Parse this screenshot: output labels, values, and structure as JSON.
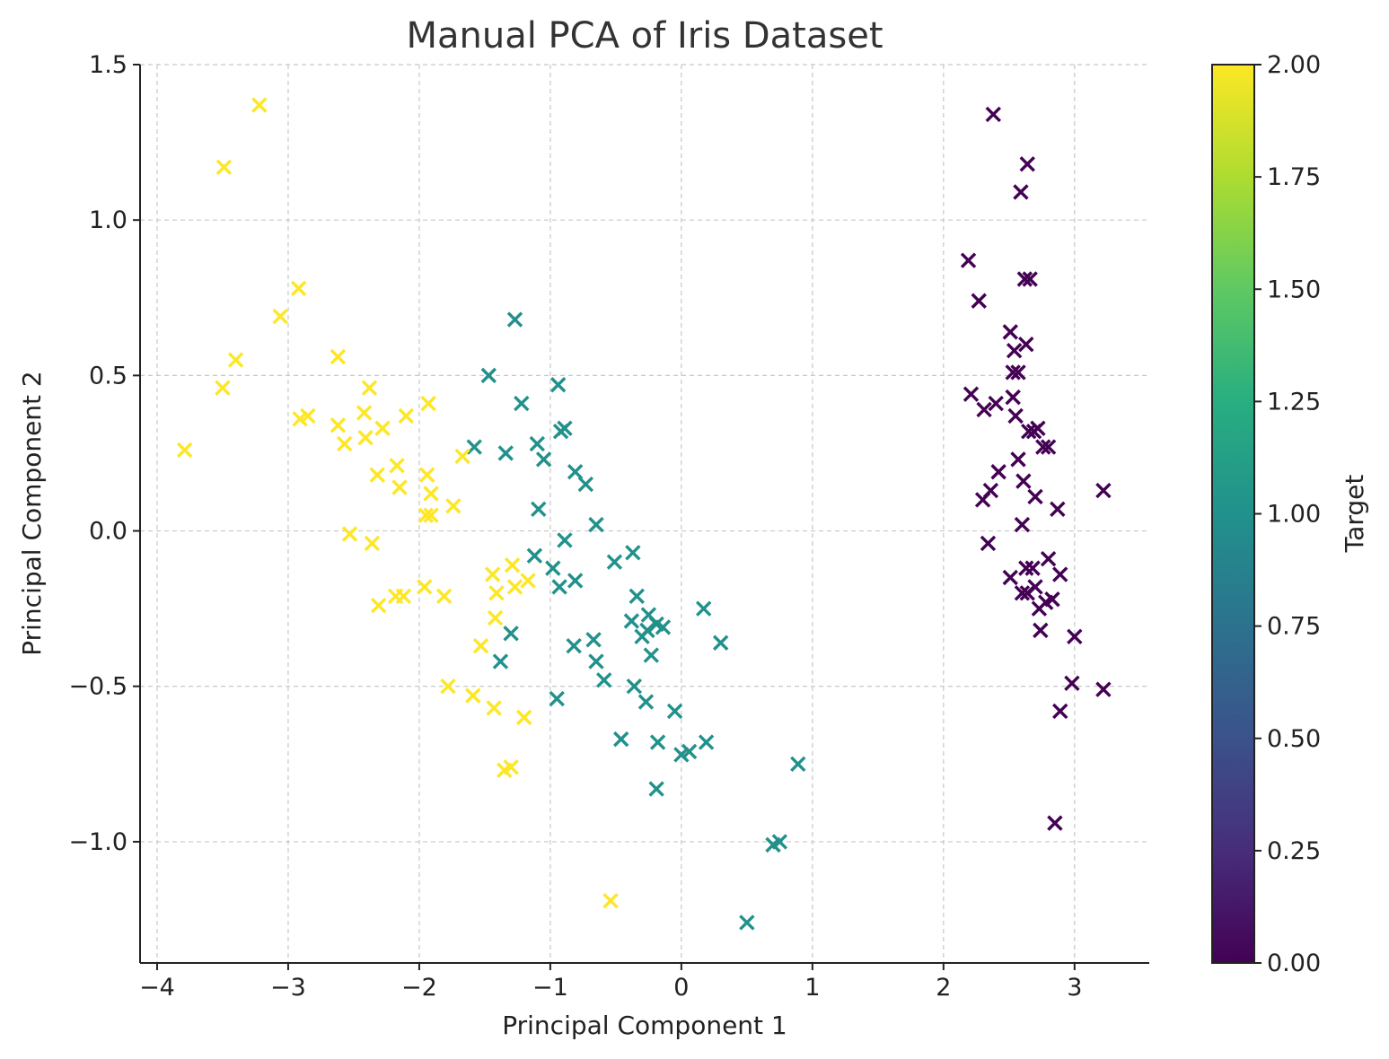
{
  "chart_data": {
    "type": "scatter",
    "title": "Manual PCA of Iris Dataset",
    "xlabel": "Principal Component 1",
    "ylabel": "Principal Component 2",
    "xlim": [
      -4.13,
      3.57
    ],
    "ylim": [
      -1.39,
      1.5
    ],
    "xticks": [
      -4,
      -3,
      -2,
      -1,
      0,
      1,
      2,
      3
    ],
    "yticks": [
      -1.0,
      -0.5,
      0.0,
      0.5,
      1.0,
      1.5
    ],
    "xtick_labels": [
      "−4",
      "−3",
      "−2",
      "−1",
      "0",
      "1",
      "2",
      "3"
    ],
    "ytick_labels": [
      "−1.0",
      "−0.5",
      "0.0",
      "0.5",
      "1.0",
      "1.5"
    ],
    "grid": true,
    "marker": "x",
    "colormap": "viridis",
    "colorbar": {
      "label": "Target",
      "range": [
        0,
        2
      ],
      "ticks": [
        0,
        0.25,
        0.5,
        0.75,
        1.0,
        1.25,
        1.5,
        1.75,
        2.0
      ],
      "tick_labels": [
        "0.00",
        "0.25",
        "0.50",
        "0.75",
        "1.00",
        "1.25",
        "1.50",
        "1.75",
        "2.00"
      ]
    },
    "class_colors": [
      "#440154",
      "#21918c",
      "#fde725"
    ],
    "points": [
      [
        2.38,
        1.34,
        0
      ],
      [
        2.64,
        1.18,
        0
      ],
      [
        2.59,
        1.09,
        0
      ],
      [
        2.19,
        0.87,
        0
      ],
      [
        2.62,
        0.81,
        0
      ],
      [
        2.66,
        0.81,
        0
      ],
      [
        2.27,
        0.74,
        0
      ],
      [
        2.51,
        0.64,
        0
      ],
      [
        2.63,
        0.6,
        0
      ],
      [
        2.54,
        0.58,
        0
      ],
      [
        2.57,
        0.51,
        0
      ],
      [
        2.53,
        0.51,
        0
      ],
      [
        2.53,
        0.43,
        0
      ],
      [
        2.21,
        0.44,
        0
      ],
      [
        2.4,
        0.41,
        0
      ],
      [
        2.31,
        0.39,
        0
      ],
      [
        2.55,
        0.37,
        0
      ],
      [
        2.65,
        0.32,
        0
      ],
      [
        2.69,
        0.32,
        0
      ],
      [
        2.72,
        0.33,
        0
      ],
      [
        2.76,
        0.27,
        0
      ],
      [
        2.8,
        0.27,
        0
      ],
      [
        2.42,
        0.19,
        0
      ],
      [
        2.57,
        0.23,
        0
      ],
      [
        2.61,
        0.16,
        0
      ],
      [
        2.36,
        0.13,
        0
      ],
      [
        2.3,
        0.1,
        0
      ],
      [
        2.7,
        0.11,
        0
      ],
      [
        3.22,
        0.13,
        0
      ],
      [
        2.87,
        0.07,
        0
      ],
      [
        2.6,
        0.02,
        0
      ],
      [
        2.34,
        -0.04,
        0
      ],
      [
        2.8,
        -0.09,
        0
      ],
      [
        2.63,
        -0.12,
        0
      ],
      [
        2.68,
        -0.12,
        0
      ],
      [
        2.51,
        -0.15,
        0
      ],
      [
        2.89,
        -0.14,
        0
      ],
      [
        2.6,
        -0.2,
        0
      ],
      [
        2.64,
        -0.2,
        0
      ],
      [
        2.7,
        -0.18,
        0
      ],
      [
        2.78,
        -0.23,
        0
      ],
      [
        2.83,
        -0.22,
        0
      ],
      [
        2.73,
        -0.25,
        0
      ],
      [
        2.74,
        -0.32,
        0
      ],
      [
        3.0,
        -0.34,
        0
      ],
      [
        2.98,
        -0.49,
        0
      ],
      [
        3.22,
        -0.51,
        0
      ],
      [
        2.89,
        -0.58,
        0
      ],
      [
        2.85,
        -0.94,
        0
      ],
      [
        -1.27,
        0.68,
        1
      ],
      [
        -1.47,
        0.5,
        1
      ],
      [
        -0.94,
        0.47,
        1
      ],
      [
        -1.22,
        0.41,
        1
      ],
      [
        -0.92,
        0.32,
        1
      ],
      [
        -0.89,
        0.33,
        1
      ],
      [
        -1.58,
        0.27,
        1
      ],
      [
        -1.34,
        0.25,
        1
      ],
      [
        -1.1,
        0.28,
        1
      ],
      [
        -1.05,
        0.23,
        1
      ],
      [
        -0.81,
        0.19,
        1
      ],
      [
        -0.73,
        0.15,
        1
      ],
      [
        -1.09,
        0.07,
        1
      ],
      [
        -0.65,
        0.02,
        1
      ],
      [
        -0.89,
        -0.03,
        1
      ],
      [
        -1.12,
        -0.08,
        1
      ],
      [
        -0.51,
        -0.1,
        1
      ],
      [
        -0.37,
        -0.07,
        1
      ],
      [
        -0.98,
        -0.12,
        1
      ],
      [
        -0.93,
        -0.18,
        1
      ],
      [
        -0.81,
        -0.16,
        1
      ],
      [
        -0.34,
        -0.21,
        1
      ],
      [
        -0.38,
        -0.29,
        1
      ],
      [
        -0.25,
        -0.27,
        1
      ],
      [
        -0.3,
        -0.34,
        1
      ],
      [
        -0.19,
        -0.3,
        1
      ],
      [
        -0.14,
        -0.31,
        1
      ],
      [
        -0.26,
        -0.32,
        1
      ],
      [
        0.17,
        -0.25,
        1
      ],
      [
        0.3,
        -0.36,
        1
      ],
      [
        -0.82,
        -0.37,
        1
      ],
      [
        -0.67,
        -0.35,
        1
      ],
      [
        -1.3,
        -0.33,
        1
      ],
      [
        -0.65,
        -0.42,
        1
      ],
      [
        -0.23,
        -0.4,
        1
      ],
      [
        -1.38,
        -0.42,
        1
      ],
      [
        -0.59,
        -0.48,
        1
      ],
      [
        -0.36,
        -0.5,
        1
      ],
      [
        -0.95,
        -0.54,
        1
      ],
      [
        -0.27,
        -0.55,
        1
      ],
      [
        -0.05,
        -0.58,
        1
      ],
      [
        -0.46,
        -0.67,
        1
      ],
      [
        -0.18,
        -0.68,
        1
      ],
      [
        0.19,
        -0.68,
        1
      ],
      [
        0.06,
        -0.71,
        1
      ],
      [
        0.0,
        -0.72,
        1
      ],
      [
        0.89,
        -0.75,
        1
      ],
      [
        -0.19,
        -0.83,
        1
      ],
      [
        0.7,
        -1.01,
        1
      ],
      [
        0.75,
        -1.0,
        1
      ],
      [
        0.5,
        -1.26,
        1
      ],
      [
        -3.22,
        1.37,
        2
      ],
      [
        -3.49,
        1.17,
        2
      ],
      [
        -2.92,
        0.78,
        2
      ],
      [
        -3.06,
        0.69,
        2
      ],
      [
        -3.4,
        0.55,
        2
      ],
      [
        -3.5,
        0.46,
        2
      ],
      [
        -2.62,
        0.56,
        2
      ],
      [
        -2.38,
        0.46,
        2
      ],
      [
        -1.93,
        0.41,
        2
      ],
      [
        -2.1,
        0.37,
        2
      ],
      [
        -2.91,
        0.36,
        2
      ],
      [
        -2.85,
        0.37,
        2
      ],
      [
        -2.42,
        0.38,
        2
      ],
      [
        -2.62,
        0.34,
        2
      ],
      [
        -2.28,
        0.33,
        2
      ],
      [
        -2.41,
        0.3,
        2
      ],
      [
        -2.57,
        0.28,
        2
      ],
      [
        -3.79,
        0.26,
        2
      ],
      [
        -1.67,
        0.24,
        2
      ],
      [
        -2.17,
        0.21,
        2
      ],
      [
        -2.32,
        0.18,
        2
      ],
      [
        -1.94,
        0.18,
        2
      ],
      [
        -2.15,
        0.14,
        2
      ],
      [
        -1.91,
        0.12,
        2
      ],
      [
        -1.74,
        0.08,
        2
      ],
      [
        -1.95,
        0.05,
        2
      ],
      [
        -1.91,
        0.05,
        2
      ],
      [
        -2.53,
        -0.01,
        2
      ],
      [
        -2.36,
        -0.04,
        2
      ],
      [
        -1.29,
        -0.11,
        2
      ],
      [
        -1.44,
        -0.14,
        2
      ],
      [
        -1.17,
        -0.16,
        2
      ],
      [
        -1.27,
        -0.18,
        2
      ],
      [
        -1.96,
        -0.18,
        2
      ],
      [
        -1.41,
        -0.2,
        2
      ],
      [
        -2.18,
        -0.21,
        2
      ],
      [
        -2.12,
        -0.21,
        2
      ],
      [
        -1.81,
        -0.21,
        2
      ],
      [
        -2.31,
        -0.24,
        2
      ],
      [
        -1.42,
        -0.28,
        2
      ],
      [
        -1.53,
        -0.37,
        2
      ],
      [
        -1.78,
        -0.5,
        2
      ],
      [
        -1.59,
        -0.53,
        2
      ],
      [
        -1.43,
        -0.57,
        2
      ],
      [
        -1.2,
        -0.6,
        2
      ],
      [
        -1.35,
        -0.77,
        2
      ],
      [
        -1.3,
        -0.76,
        2
      ],
      [
        -0.54,
        -1.19,
        2
      ]
    ]
  }
}
